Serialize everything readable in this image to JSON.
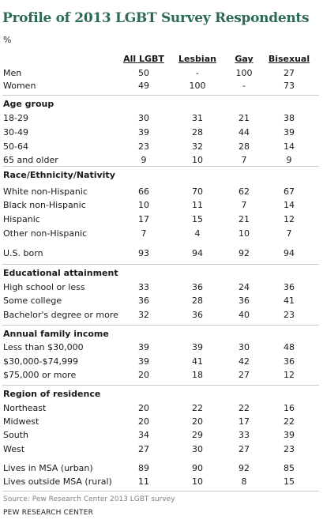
{
  "title": "Profile of 2013 LGBT Survey Respondents",
  "unit": "%",
  "columns": [
    "All LGBT",
    "Lesbian",
    "Gay",
    "Bisexual"
  ],
  "rows": [
    {
      "label": "Men",
      "values": [
        "50",
        "-",
        "100",
        "27"
      ]
    },
    {
      "label": "Women",
      "values": [
        "49",
        "100",
        "-",
        "73"
      ]
    },
    {
      "section": "Age group"
    },
    {
      "label": "18-29",
      "values": [
        "30",
        "31",
        "21",
        "38"
      ]
    },
    {
      "label": "30-49",
      "values": [
        "39",
        "28",
        "44",
        "39"
      ]
    },
    {
      "label": "50-64",
      "values": [
        "23",
        "32",
        "28",
        "14"
      ]
    },
    {
      "label": "65 and older",
      "values": [
        "9",
        "10",
        "7",
        "9"
      ]
    },
    {
      "section": "Race/Ethnicity/Nativity"
    },
    {
      "label": "White non-Hispanic",
      "values": [
        "66",
        "70",
        "62",
        "67"
      ]
    },
    {
      "label": "Black non-Hispanic",
      "values": [
        "10",
        "11",
        "7",
        "14"
      ]
    },
    {
      "label": "Hispanic",
      "values": [
        "17",
        "15",
        "21",
        "12"
      ]
    },
    {
      "label": "Other non-Hispanic",
      "values": [
        "7",
        "4",
        "10",
        "7"
      ]
    },
    {
      "label": "U.S. born",
      "values": [
        "93",
        "94",
        "92",
        "94"
      ]
    },
    {
      "section": "Educational attainment"
    },
    {
      "label": "High school or less",
      "values": [
        "33",
        "36",
        "24",
        "36"
      ]
    },
    {
      "label": "Some college",
      "values": [
        "36",
        "28",
        "36",
        "41"
      ]
    },
    {
      "label": "Bachelor's degree or more",
      "values": [
        "32",
        "36",
        "40",
        "23"
      ]
    },
    {
      "section": "Annual family income"
    },
    {
      "label": "Less than $30,000",
      "values": [
        "39",
        "39",
        "30",
        "48"
      ]
    },
    {
      "label": "$30,000-$74,999",
      "values": [
        "39",
        "41",
        "42",
        "36"
      ]
    },
    {
      "label": "$75,000 or more",
      "values": [
        "20",
        "18",
        "27",
        "12"
      ]
    },
    {
      "section": "Region of residence"
    },
    {
      "label": "Northeast",
      "values": [
        "20",
        "22",
        "22",
        "16"
      ]
    },
    {
      "label": "Midwest",
      "values": [
        "20",
        "20",
        "17",
        "22"
      ]
    },
    {
      "label": "South",
      "values": [
        "34",
        "29",
        "33",
        "39"
      ]
    },
    {
      "label": "West",
      "values": [
        "27",
        "30",
        "27",
        "23"
      ]
    },
    {
      "label": "Lives in MSA (urban)",
      "values": [
        "89",
        "90",
        "92",
        "85"
      ]
    },
    {
      "label": "Lives outside MSA (rural)",
      "values": [
        "11",
        "10",
        "8",
        "15"
      ]
    }
  ],
  "source": "Source: Pew Research Center 2013 LGBT survey",
  "credit": "PEW RESEARCH CENTER"
}
